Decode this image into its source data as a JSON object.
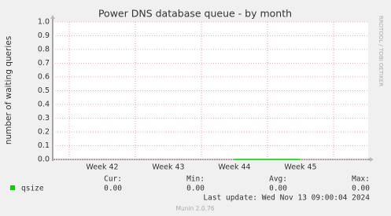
{
  "chart_data": {
    "type": "line",
    "title": "Power DNS database queue - by month",
    "y_label": "number of waiting queries",
    "categories": [
      "Week 42",
      "Week 43",
      "Week 44",
      "Week 45"
    ],
    "series": [
      {
        "name": "qsize",
        "color": "#00cc00",
        "values": [
          null,
          null,
          0,
          0
        ]
      }
    ],
    "ylim": [
      0,
      1
    ],
    "yticks": [
      {
        "value": 0,
        "label": "0.0"
      },
      {
        "value": 0.1,
        "label": "0.1"
      },
      {
        "value": 0.2,
        "label": "0.2"
      },
      {
        "value": 0.3,
        "label": "0.3"
      },
      {
        "value": 0.4,
        "label": "0.4"
      },
      {
        "value": 0.5,
        "label": "0.5"
      },
      {
        "value": 0.6,
        "label": "0.6"
      },
      {
        "value": 0.7,
        "label": "0.7"
      },
      {
        "value": 0.8,
        "label": "0.8"
      },
      {
        "value": 0.9,
        "label": "0.9"
      },
      {
        "value": 1,
        "label": "1.0"
      }
    ],
    "grid": true,
    "stats": {
      "labels": [
        "Cur:",
        "Min:",
        "Avg:",
        "Max:"
      ],
      "values": [
        0,
        0,
        0,
        0
      ],
      "value_labels": [
        "0.00",
        "0.00",
        "0.00",
        "0.00"
      ]
    },
    "last_update": "Last update: Wed Nov 13 09:00:04 2024",
    "side_note": "RRDTOOL / TOBI OETIKER",
    "footer": "Munin 2.0.76"
  }
}
